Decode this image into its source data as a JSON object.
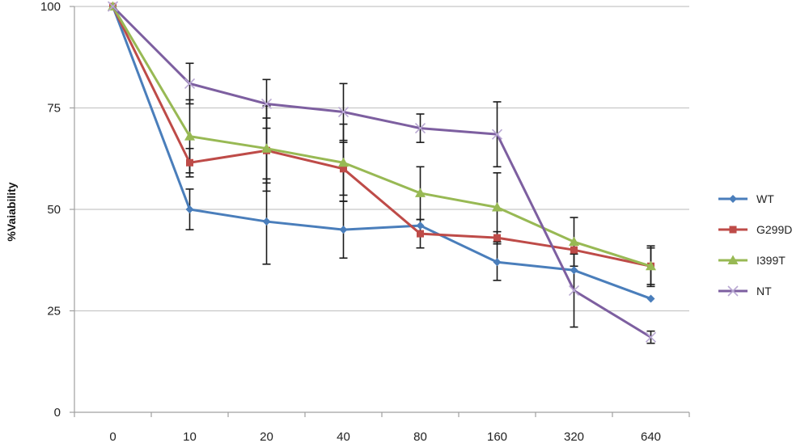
{
  "chart_data": {
    "type": "line",
    "title": "",
    "xlabel": "",
    "ylabel": "%Vaiability",
    "categories": [
      "0",
      "10",
      "20",
      "40",
      "80",
      "160",
      "320",
      "640"
    ],
    "ylim": [
      0,
      100
    ],
    "yticks": [
      0,
      25,
      50,
      75,
      100
    ],
    "grid": true,
    "legend_position": "right",
    "series": [
      {
        "name": "WT",
        "color": "#4a7ebb",
        "marker": "diamond",
        "values": [
          100,
          50,
          47,
          45,
          46,
          37,
          35,
          28
        ],
        "errors": [
          0,
          5,
          10.5,
          7,
          0,
          4.5,
          0,
          0
        ]
      },
      {
        "name": "G299D",
        "color": "#be4b48",
        "marker": "square",
        "values": [
          100,
          61.5,
          64.5,
          60,
          44,
          43,
          40,
          36
        ],
        "errors": [
          0,
          3.5,
          8,
          6.5,
          3.5,
          1.5,
          0,
          4.5
        ]
      },
      {
        "name": "I399T",
        "color": "#98b954",
        "marker": "triangle",
        "values": [
          100,
          68,
          65,
          61.5,
          54,
          50.5,
          42,
          36
        ],
        "errors": [
          0,
          9,
          10.5,
          9.5,
          6.5,
          8.5,
          6,
          5
        ]
      },
      {
        "name": "NT",
        "color": "#7d5fa0",
        "marker": "x",
        "values": [
          100,
          81,
          76,
          74,
          70,
          68.5,
          30,
          18.5
        ],
        "errors": [
          0,
          5,
          6,
          7,
          3.5,
          8,
          9,
          1.5
        ]
      }
    ]
  }
}
